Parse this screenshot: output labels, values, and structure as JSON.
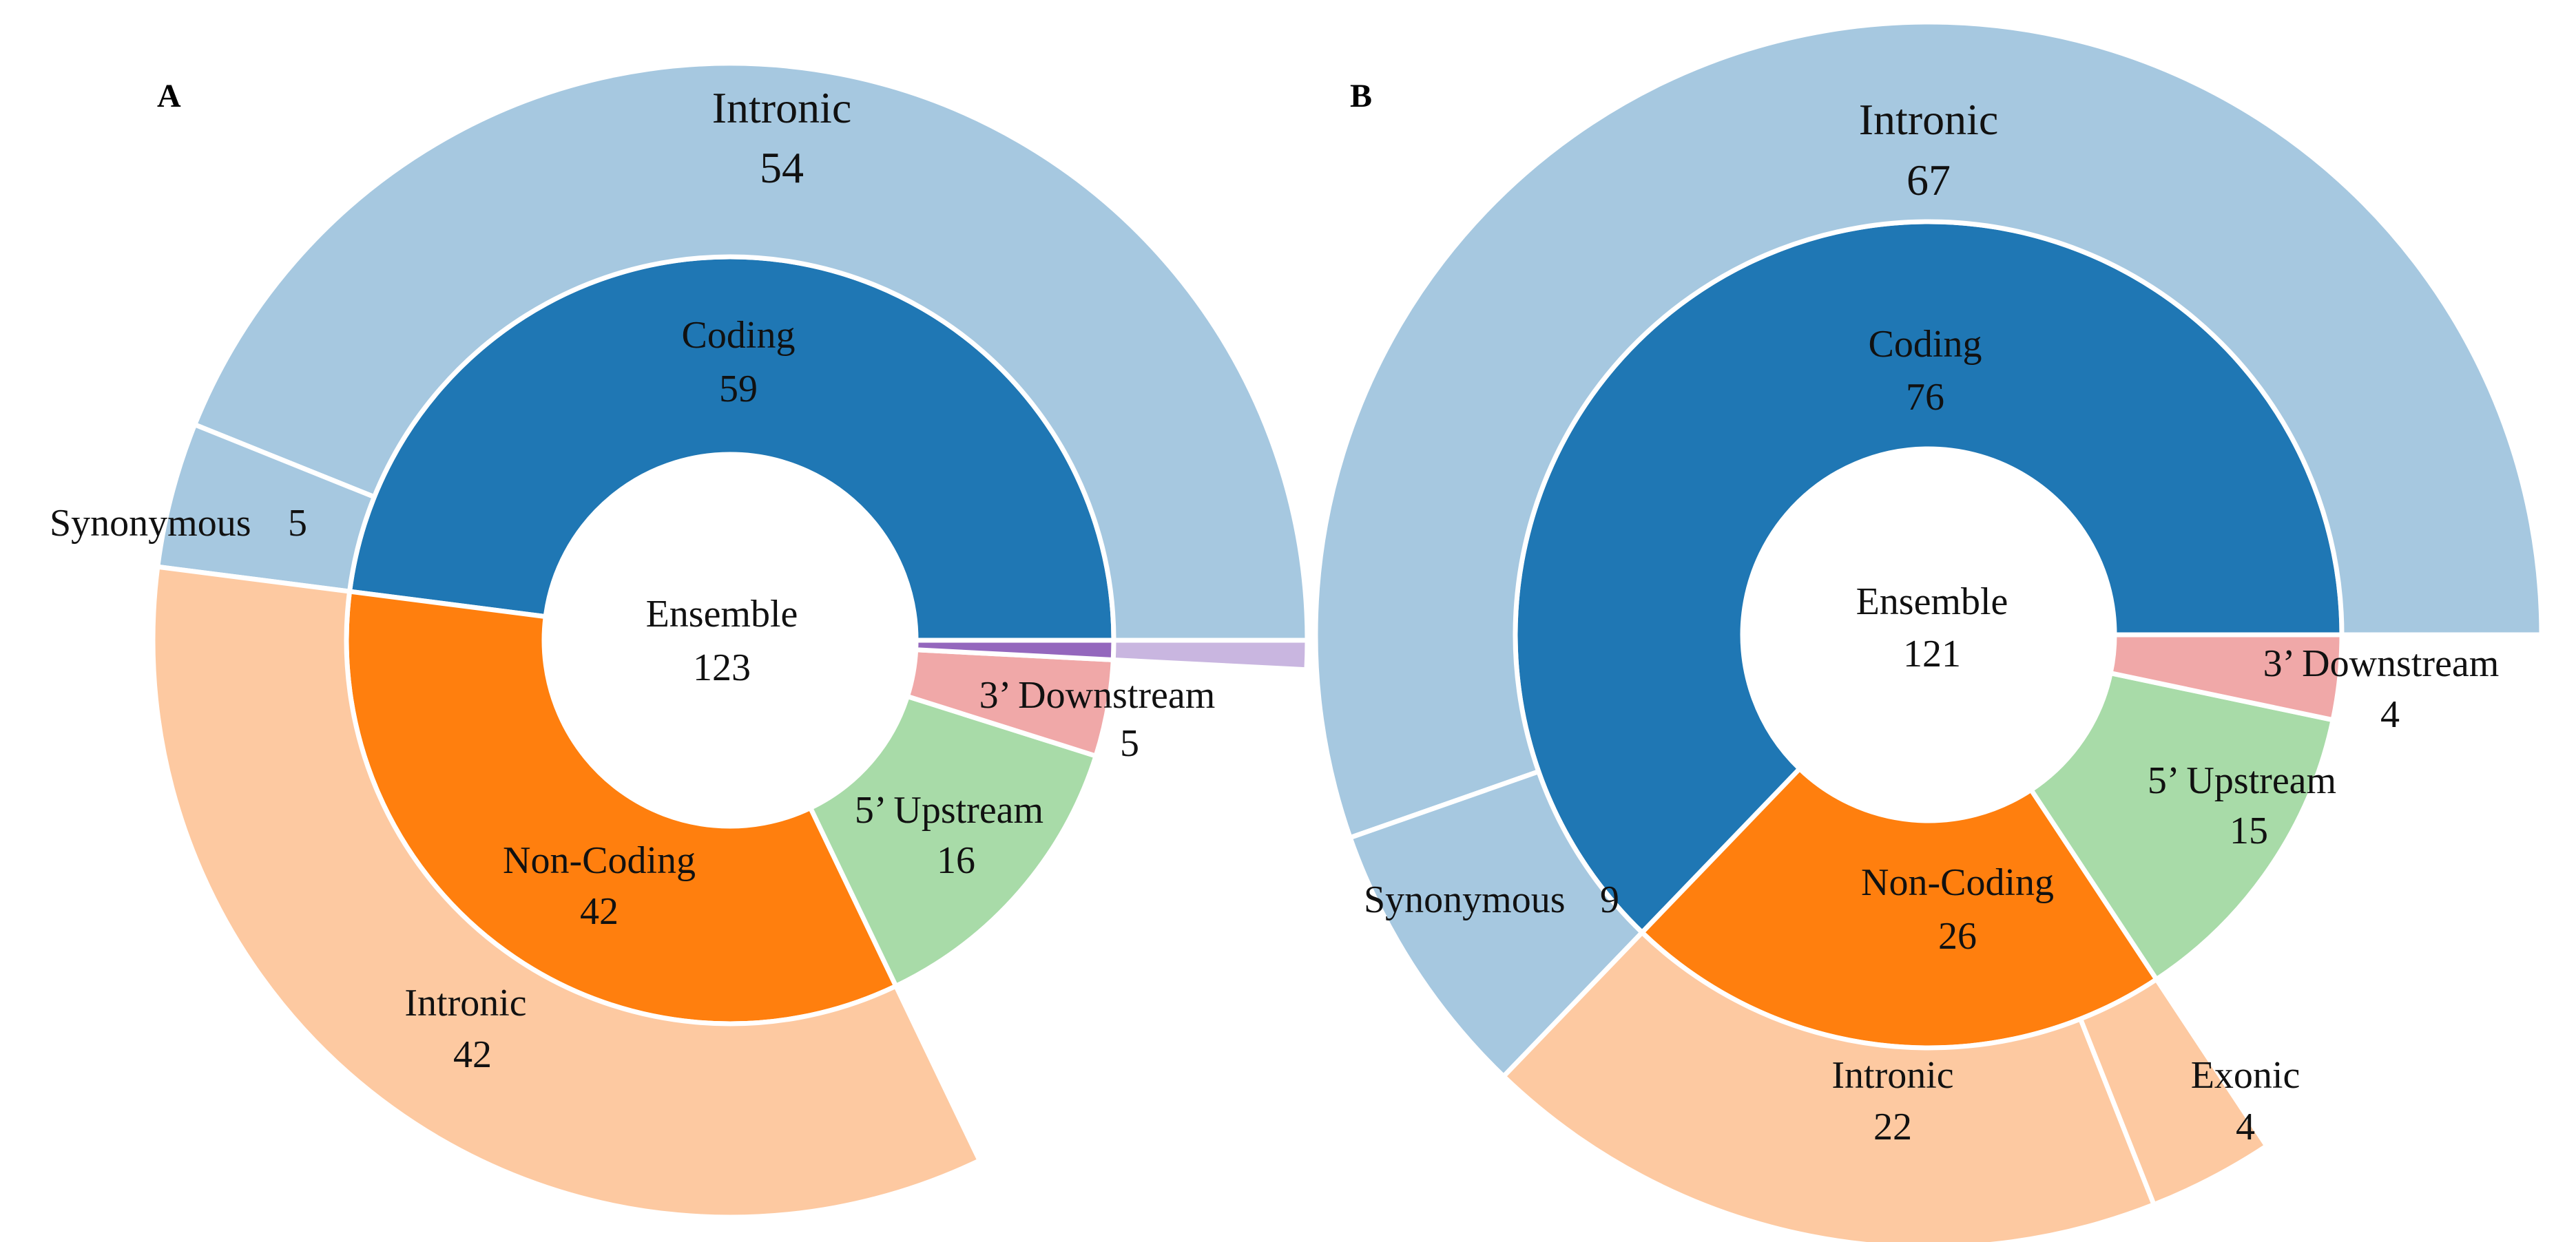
{
  "chart_data": [
    {
      "type": "sunburst",
      "panel": "A",
      "center": {
        "label": "Ensemble",
        "value": "123"
      },
      "inner": [
        {
          "name": "Coding",
          "value": 59,
          "color": "#1f77b4"
        },
        {
          "name": "Non-Coding",
          "value": 42,
          "color": "#ff7f0e"
        },
        {
          "name": "5’ Upstream",
          "value": 16,
          "color": "#a8dba8"
        },
        {
          "name": "3’ Downstream",
          "value": 5,
          "color": "#f0a8a8"
        },
        {
          "name": "",
          "value": 1,
          "color": "#9467bd"
        }
      ],
      "outer": [
        {
          "parent": "Coding",
          "name": "Intronic",
          "value": 54,
          "color": "#a6c8e0"
        },
        {
          "parent": "Coding",
          "name": "Synonymous",
          "value": 5,
          "color": "#a6c8e0"
        },
        {
          "parent": "Non-Coding",
          "name": "Intronic",
          "value": 42,
          "color": "#fdc9a1"
        },
        {
          "parent": "",
          "name": "",
          "value": 1,
          "color": "#c9b6e0"
        }
      ],
      "labels": {
        "outer_intronic_coding": {
          "name": "Intronic",
          "value": "54"
        },
        "inner_coding": {
          "name": "Coding",
          "value": "59"
        },
        "synonymous": {
          "name": "Synonymous",
          "value": "5"
        },
        "center": {
          "name": "Ensemble",
          "value": "123"
        },
        "downstream": {
          "name": "3’ Downstream",
          "value": "5"
        },
        "upstream": {
          "name": "5’ Upstream",
          "value": "16"
        },
        "noncoding": {
          "name": "Non-Coding",
          "value": "42"
        },
        "outer_intronic_noncoding": {
          "name": "Intronic",
          "value": "42"
        }
      }
    },
    {
      "type": "sunburst",
      "panel": "B",
      "center": {
        "label": "Ensemble",
        "value": "121"
      },
      "inner": [
        {
          "name": "Coding",
          "value": 76,
          "color": "#1f77b4"
        },
        {
          "name": "Non-Coding",
          "value": 26,
          "color": "#ff7f0e"
        },
        {
          "name": "5’ Upstream",
          "value": 15,
          "color": "#a8dba8"
        },
        {
          "name": "3’ Downstream",
          "value": 4,
          "color": "#f0a8a8"
        }
      ],
      "outer": [
        {
          "parent": "Coding",
          "name": "Intronic",
          "value": 67,
          "color": "#a6c8e0"
        },
        {
          "parent": "Coding",
          "name": "Synonymous",
          "value": 9,
          "color": "#a6c8e0"
        },
        {
          "parent": "Non-Coding",
          "name": "Intronic",
          "value": 22,
          "color": "#fdc9a1"
        },
        {
          "parent": "Non-Coding",
          "name": "Exonic",
          "value": 4,
          "color": "#fdc9a1"
        }
      ],
      "labels": {
        "outer_intronic_coding": {
          "name": "Intronic",
          "value": "67"
        },
        "inner_coding": {
          "name": "Coding",
          "value": "76"
        },
        "center": {
          "name": "Ensemble",
          "value": "121"
        },
        "downstream": {
          "name": "3’ Downstream",
          "value": "4"
        },
        "upstream": {
          "name": "5’ Upstream",
          "value": "15"
        },
        "synonymous": {
          "name": "Synonymous",
          "value": "9"
        },
        "noncoding": {
          "name": "Non-Coding",
          "value": "26"
        },
        "outer_intronic_noncoding": {
          "name": "Intronic",
          "value": "22"
        },
        "exonic": {
          "name": "Exonic",
          "value": "4"
        }
      }
    }
  ]
}
